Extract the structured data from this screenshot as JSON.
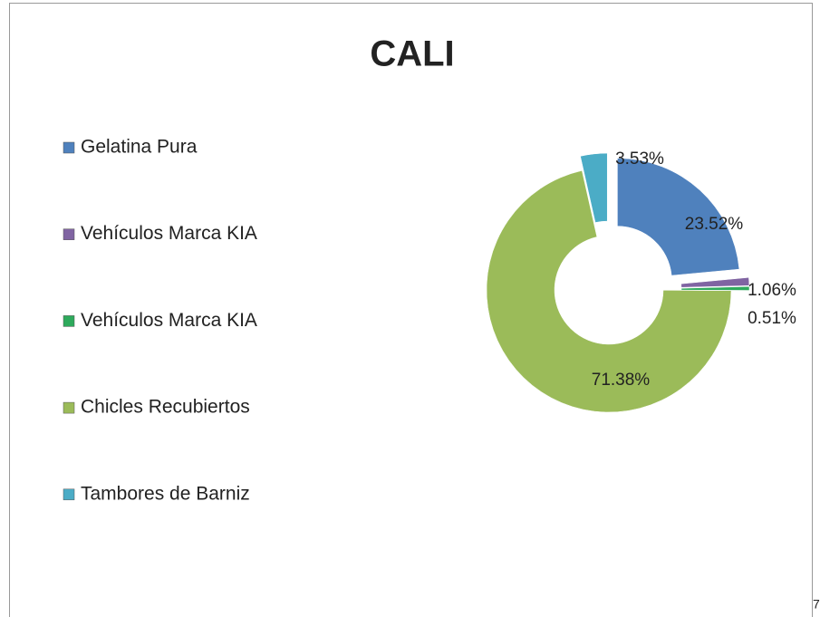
{
  "chart_data": {
    "type": "donut",
    "title": "CALI",
    "categories": [
      "Gelatina Pura",
      "Vehículos Marca KIA",
      "Vehículos Marca KIA",
      "Chicles Recubiertos",
      "Tambores de Barniz"
    ],
    "values": [
      23.52,
      1.06,
      0.51,
      71.38,
      3.53
    ],
    "value_labels": [
      "23.52%",
      "1.06%",
      "0.51%",
      "71.38%",
      "3.53%"
    ],
    "colors": [
      "#4f81bd",
      "#8064a2",
      "#2eaa5c",
      "#9bbb59",
      "#4bacc6"
    ],
    "legend": "left"
  },
  "page_number": "7"
}
